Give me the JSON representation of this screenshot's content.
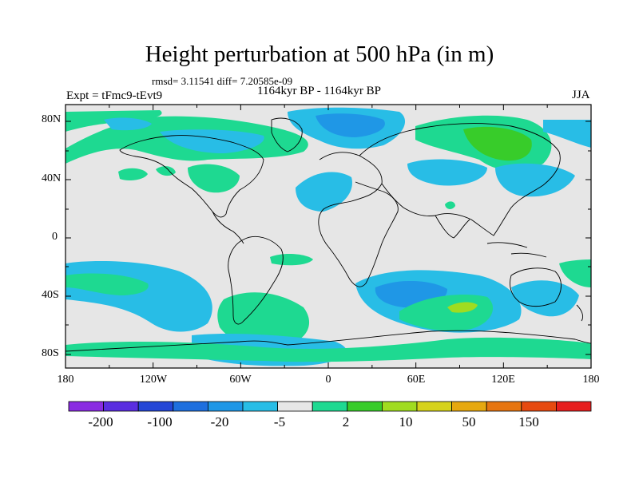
{
  "map": {
    "title": "Height perturbation at 500 hPa (in m)",
    "stats": "rmsd= 3.11541 diff= 7.20585e-09",
    "experiment": "Expt = tFmc9-tEvt9",
    "period": "1164kyr BP - 1164kyr BP",
    "season": "JJA",
    "lat_labels": [
      "80N",
      "40N",
      "0",
      "40S",
      "80S"
    ],
    "lon_labels": [
      "180",
      "120W",
      "60W",
      "0",
      "60E",
      "120E",
      "180"
    ],
    "background_color": "#e6e6e6"
  },
  "colorbar": {
    "labels": [
      "-200",
      "-100",
      "-20",
      "-5",
      "2",
      "10",
      "50",
      "150"
    ],
    "colors": [
      "#8a2be2",
      "#5a2de0",
      "#2446d6",
      "#1e6fde",
      "#1f97e6",
      "#28bde6",
      "#e6e6e6",
      "#1ed991",
      "#38cc2a",
      "#a0dc20",
      "#d6d21a",
      "#e6a80f",
      "#e67510",
      "#e64a10",
      "#e61e1e"
    ]
  }
}
